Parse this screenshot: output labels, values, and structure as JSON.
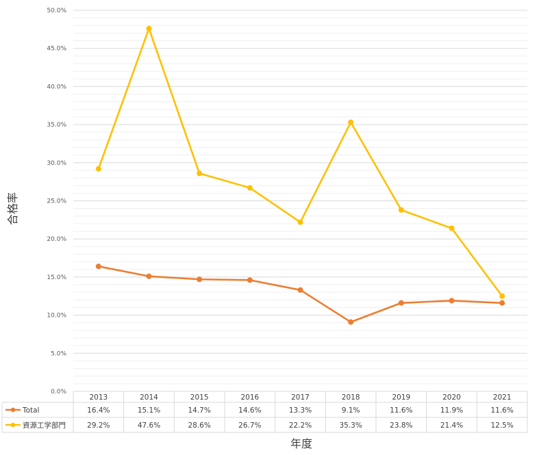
{
  "chart_data": {
    "type": "line",
    "ylabel": "合格率",
    "xlabel": "年度",
    "ylim": [
      0,
      0.5
    ],
    "y_ticks": [
      "0.0%",
      "5.0%",
      "10.0%",
      "15.0%",
      "20.0%",
      "25.0%",
      "30.0%",
      "35.0%",
      "40.0%",
      "45.0%",
      "50.0%"
    ],
    "grid": true,
    "legend": "data-table",
    "categories": [
      "2013",
      "2014",
      "2015",
      "2016",
      "2017",
      "2018",
      "2019",
      "2020",
      "2021"
    ],
    "series": [
      {
        "name": "Total",
        "color": "#ED7D31",
        "values": [
          0.164,
          0.151,
          0.147,
          0.146,
          0.133,
          0.091,
          0.116,
          0.119,
          0.116
        ],
        "labels": [
          "16.4%",
          "15.1%",
          "14.7%",
          "14.6%",
          "13.3%",
          "9.1%",
          "11.6%",
          "11.9%",
          "11.6%"
        ]
      },
      {
        "name": "資源工学部門",
        "color": "#FFC000",
        "values": [
          0.292,
          0.476,
          0.286,
          0.267,
          0.222,
          0.353,
          0.238,
          0.214,
          0.125
        ],
        "labels": [
          "29.2%",
          "47.6%",
          "28.6%",
          "26.7%",
          "22.2%",
          "35.3%",
          "23.8%",
          "21.4%",
          "12.5%"
        ]
      }
    ]
  }
}
